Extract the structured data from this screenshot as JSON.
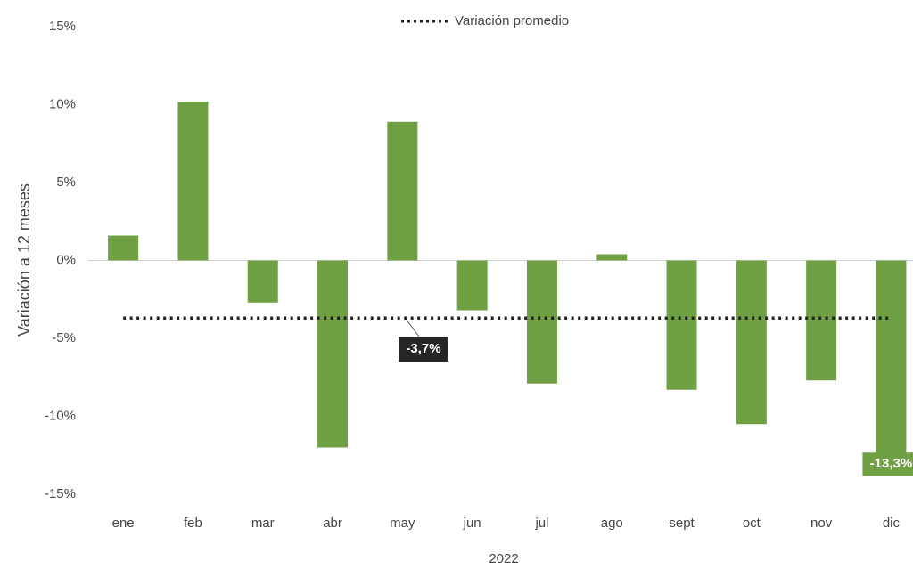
{
  "chart_data": {
    "type": "bar",
    "y_axis_label": "Variación a 12 meses",
    "x_axis_label": "2022",
    "categories": [
      "ene",
      "feb",
      "mar",
      "abr",
      "may",
      "jun",
      "jul",
      "ago",
      "sept",
      "oct",
      "nov",
      "dic"
    ],
    "series": [
      {
        "name": "Variación a 12 meses",
        "color": "#70a044",
        "values": [
          1.6,
          10.2,
          -2.7,
          -12.0,
          8.9,
          -3.2,
          -7.9,
          0.4,
          -8.3,
          -10.5,
          -7.7,
          -13.3
        ],
        "value_labels": [
          null,
          null,
          null,
          null,
          null,
          null,
          null,
          null,
          null,
          null,
          null,
          "-13,3%"
        ]
      }
    ],
    "average": {
      "name": "Variación promedio",
      "value": -3.7,
      "label": "-3,7%"
    },
    "ylim": [
      -15,
      15
    ],
    "yticks": [
      {
        "value": -15,
        "label": "-15%"
      },
      {
        "value": -10,
        "label": "-10%"
      },
      {
        "value": -5,
        "label": "-5%"
      },
      {
        "value": 0,
        "label": "0%"
      },
      {
        "value": 5,
        "label": "5%"
      },
      {
        "value": 10,
        "label": "10%"
      },
      {
        "value": 15,
        "label": "15%"
      }
    ],
    "grid": false
  }
}
